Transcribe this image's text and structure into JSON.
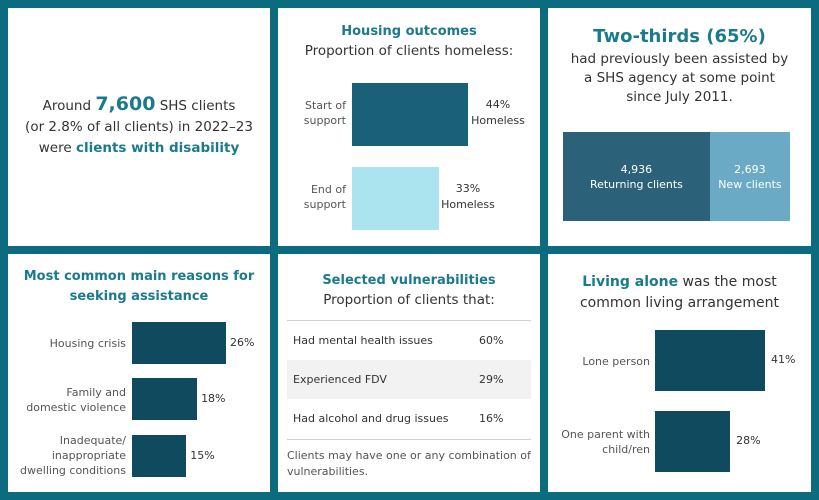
{
  "disability": {
    "prefix": "Around ",
    "number": "7,600",
    "line1_rest": " SHS clients",
    "line2": "(or 2.8% of all clients) in 2022–23",
    "line3_prefix": "were ",
    "line3_emph": "clients with disability"
  },
  "housing": {
    "title": "Housing outcomes",
    "subtitle": "Proportion of clients homeless:",
    "bars": [
      {
        "label_line1": "Start of",
        "label_line2": "support",
        "value_text": "44%",
        "value_sub": "Homeless",
        "color": "#1a6078"
      },
      {
        "label_line1": "End of",
        "label_line2": "support",
        "value_text": "33%",
        "value_sub": "Homeless",
        "color": "#abe3ef"
      }
    ]
  },
  "returning": {
    "headline": "Two-thirds (65%)",
    "desc_line1": "had previously been assisted by",
    "desc_line2": "a SHS agency at some point",
    "desc_line3": "since July 2011.",
    "segments": [
      {
        "value": "4,936",
        "label": "Returning clients",
        "color": "#2b6179"
      },
      {
        "value": "2,693",
        "label": "New clients",
        "color": "#6aaac4"
      }
    ]
  },
  "reasons": {
    "title_line1": "Most common main reasons for",
    "title_line2": "seeking assistance",
    "bars": [
      {
        "label_lines": [
          "Housing crisis"
        ],
        "value_text": "26%"
      },
      {
        "label_lines": [
          "Family and",
          "domestic violence"
        ],
        "value_text": "18%"
      },
      {
        "label_lines": [
          "Inadequate/",
          "inappropriate",
          "dwelling conditions"
        ],
        "value_text": "15%"
      }
    ]
  },
  "vulnerabilities": {
    "title": "Selected vulnerabilities",
    "subtitle": "Proportion of clients that:",
    "rows": [
      {
        "label": "Had mental health issues",
        "value": "60%"
      },
      {
        "label": "Experienced FDV",
        "value": "29%"
      },
      {
        "label": "Had alcohol and drug issues",
        "value": "16%"
      }
    ],
    "note_line1": "Clients may have one or any combination of",
    "note_line2": "vulnerabilities."
  },
  "living": {
    "title_emph": "Living alone",
    "title_rest": " was the most",
    "title_line2": "common living arrangement",
    "bars": [
      {
        "label_lines": [
          "Lone person"
        ],
        "value_text": "41%"
      },
      {
        "label_lines": [
          "One parent with",
          "child/ren"
        ],
        "value_text": "28%"
      }
    ]
  },
  "colors": {
    "background": "#0c6b7e",
    "accent_text": "#1b7a8c",
    "bar_dark": "#0f4a5f"
  },
  "chart_data": [
    {
      "type": "bar",
      "title": "Housing outcomes",
      "subtitle": "Proportion of clients homeless:",
      "categories": [
        "Start of support",
        "End of support"
      ],
      "values": [
        44,
        33
      ],
      "unit": "%"
    },
    {
      "type": "bar",
      "title": "Two-thirds (65%)",
      "categories": [
        "Returning clients",
        "New clients"
      ],
      "values": [
        4936,
        2693
      ]
    },
    {
      "type": "bar",
      "title": "Most common main reasons for seeking assistance",
      "categories": [
        "Housing crisis",
        "Family and domestic violence",
        "Inadequate/ inappropriate dwelling conditions"
      ],
      "values": [
        26,
        18,
        15
      ],
      "unit": "%"
    },
    {
      "type": "table",
      "title": "Selected vulnerabilities",
      "subtitle": "Proportion of clients that:",
      "categories": [
        "Had mental health issues",
        "Experienced FDV",
        "Had alcohol and drug issues"
      ],
      "values": [
        60,
        29,
        16
      ],
      "unit": "%"
    },
    {
      "type": "bar",
      "title": "Living alone was the most common living arrangement",
      "categories": [
        "Lone person",
        "One parent with child/ren"
      ],
      "values": [
        41,
        28
      ],
      "unit": "%"
    }
  ]
}
